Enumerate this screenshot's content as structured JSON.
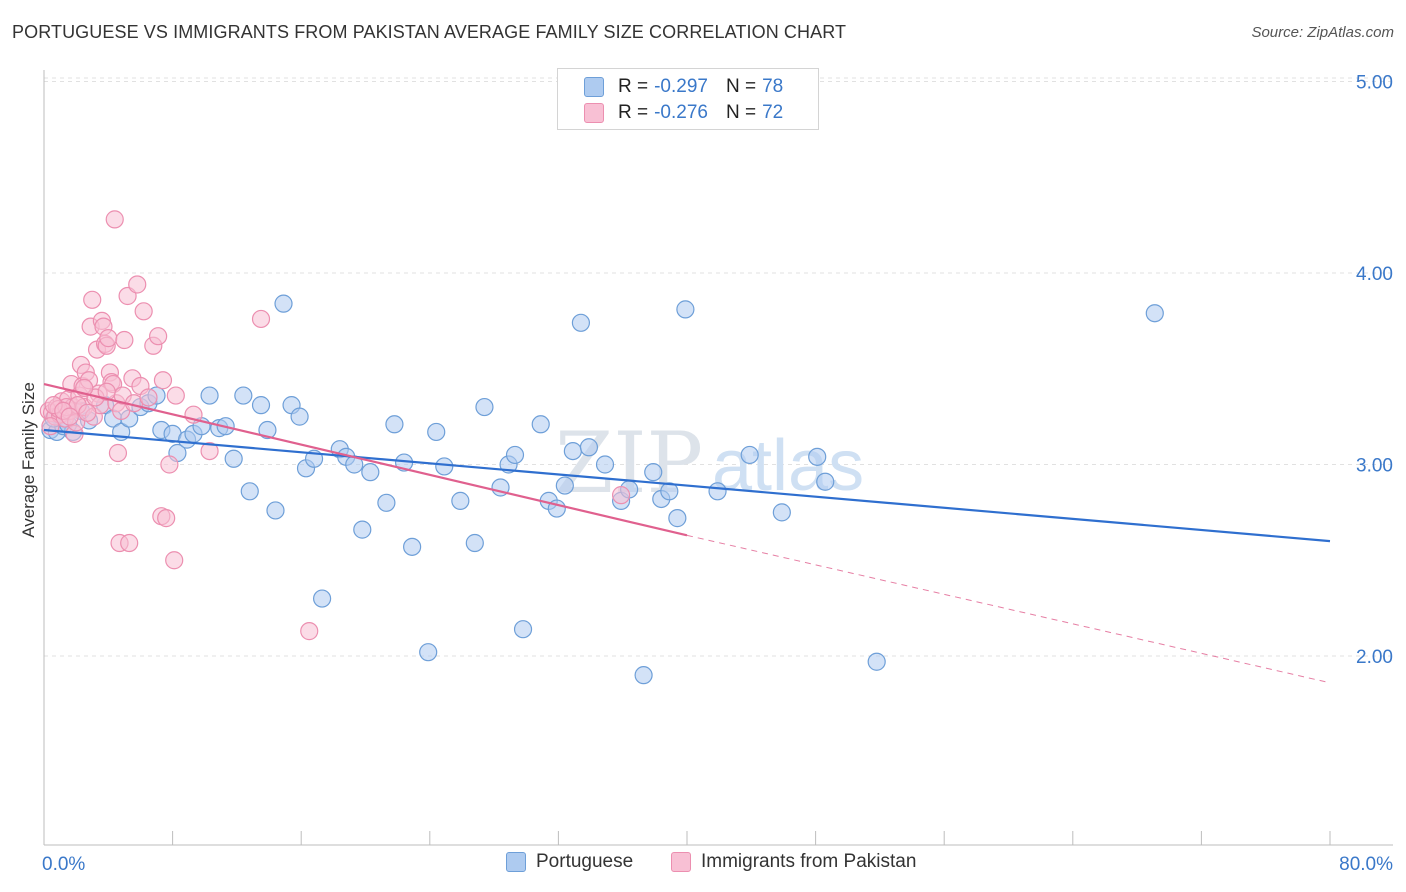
{
  "title": "PORTUGUESE VS IMMIGRANTS FROM PAKISTAN AVERAGE FAMILY SIZE CORRELATION CHART",
  "source": "Source: ZipAtlas.com",
  "watermark": {
    "zip": "ZIP",
    "atlas": "atlas"
  },
  "legend": {
    "r_label": "R =",
    "n_label": "N =",
    "series": [
      {
        "r": "-0.297",
        "n": "78",
        "color": "#3a78c9"
      },
      {
        "r": "-0.276",
        "n": "72",
        "color": "#3a78c9"
      }
    ]
  },
  "chart_data": {
    "type": "scatter",
    "title": "PORTUGUESE VS IMMIGRANTS FROM PAKISTAN AVERAGE FAMILY SIZE CORRELATION CHART",
    "xlabel": "",
    "ylabel": "Average Family Size",
    "xlim": [
      0,
      80
    ],
    "ylim": [
      1.0,
      5.1
    ],
    "x_tick_labels": [
      "0.0%",
      "80.0%"
    ],
    "y_ticks": [
      2.0,
      3.0,
      4.0,
      5.0
    ],
    "y_tick_labels": [
      "2.00",
      "3.00",
      "4.00",
      "5.00"
    ],
    "grid": true,
    "legend_position": "top-center",
    "series": [
      {
        "name": "Portuguese",
        "fill": "#aecbf0",
        "stroke": "#6e9fd8",
        "trend": {
          "x": [
            0,
            80
          ],
          "y": [
            3.18,
            2.6
          ],
          "color": "#2f6fcf",
          "dashed_from": null
        },
        "points": [
          [
            0.4,
            3.18
          ],
          [
            0.8,
            3.17
          ],
          [
            1.2,
            3.2
          ],
          [
            1.8,
            3.17
          ],
          [
            2.8,
            3.23
          ],
          [
            3.8,
            3.31
          ],
          [
            4.3,
            3.24
          ],
          [
            4.8,
            3.17
          ],
          [
            5.3,
            3.24
          ],
          [
            6.0,
            3.3
          ],
          [
            6.5,
            3.32
          ],
          [
            7.0,
            3.36
          ],
          [
            7.3,
            3.18
          ],
          [
            8.0,
            3.16
          ],
          [
            8.3,
            3.06
          ],
          [
            8.9,
            3.13
          ],
          [
            9.3,
            3.16
          ],
          [
            9.8,
            3.2
          ],
          [
            10.3,
            3.36
          ],
          [
            10.9,
            3.19
          ],
          [
            11.3,
            3.2
          ],
          [
            11.8,
            3.03
          ],
          [
            12.4,
            3.36
          ],
          [
            12.8,
            2.86
          ],
          [
            13.5,
            3.31
          ],
          [
            13.9,
            3.18
          ],
          [
            14.4,
            2.76
          ],
          [
            14.9,
            3.84
          ],
          [
            15.4,
            3.31
          ],
          [
            15.9,
            3.25
          ],
          [
            16.3,
            2.98
          ],
          [
            16.8,
            3.03
          ],
          [
            17.3,
            2.3
          ],
          [
            18.4,
            3.08
          ],
          [
            18.8,
            3.04
          ],
          [
            19.3,
            3.0
          ],
          [
            19.8,
            2.66
          ],
          [
            20.3,
            2.96
          ],
          [
            21.3,
            2.8
          ],
          [
            21.8,
            3.21
          ],
          [
            22.4,
            3.01
          ],
          [
            22.9,
            2.57
          ],
          [
            23.9,
            2.02
          ],
          [
            24.4,
            3.17
          ],
          [
            24.9,
            2.99
          ],
          [
            25.9,
            2.81
          ],
          [
            26.8,
            2.59
          ],
          [
            27.4,
            3.3
          ],
          [
            28.4,
            2.88
          ],
          [
            28.9,
            3.0
          ],
          [
            29.3,
            3.05
          ],
          [
            29.8,
            2.14
          ],
          [
            30.9,
            3.21
          ],
          [
            31.4,
            2.81
          ],
          [
            31.9,
            2.77
          ],
          [
            32.4,
            2.89
          ],
          [
            32.9,
            3.07
          ],
          [
            33.4,
            3.74
          ],
          [
            33.9,
            3.09
          ],
          [
            34.9,
            3.0
          ],
          [
            35.9,
            2.81
          ],
          [
            36.4,
            2.87
          ],
          [
            37.3,
            1.9
          ],
          [
            37.9,
            2.96
          ],
          [
            38.4,
            2.82
          ],
          [
            38.9,
            2.86
          ],
          [
            39.4,
            2.72
          ],
          [
            39.9,
            3.81
          ],
          [
            41.9,
            2.86
          ],
          [
            43.9,
            3.05
          ],
          [
            45.9,
            2.75
          ],
          [
            48.1,
            3.04
          ],
          [
            48.6,
            2.91
          ],
          [
            51.8,
            1.97
          ],
          [
            69.1,
            3.79
          ],
          [
            0.6,
            3.24
          ],
          [
            1.5,
            3.21
          ],
          [
            2.3,
            3.28
          ]
        ]
      },
      {
        "name": "Immigrants from Pakistan",
        "fill": "#f8c0d4",
        "stroke": "#ec8fb0",
        "trend": {
          "x": [
            0,
            40
          ],
          "y": [
            3.42,
            2.63
          ],
          "color": "#e0608e",
          "dashed_to": {
            "x": 80,
            "y": 1.86
          }
        },
        "points": [
          [
            0.3,
            3.28
          ],
          [
            0.5,
            3.27
          ],
          [
            0.7,
            3.25
          ],
          [
            0.8,
            3.3
          ],
          [
            1.0,
            3.26
          ],
          [
            1.1,
            3.33
          ],
          [
            1.3,
            3.24
          ],
          [
            1.5,
            3.34
          ],
          [
            1.6,
            3.28
          ],
          [
            1.7,
            3.42
          ],
          [
            1.8,
            3.3
          ],
          [
            1.9,
            3.16
          ],
          [
            2.0,
            3.22
          ],
          [
            2.2,
            3.36
          ],
          [
            2.3,
            3.52
          ],
          [
            2.4,
            3.41
          ],
          [
            2.5,
            3.3
          ],
          [
            2.6,
            3.48
          ],
          [
            2.8,
            3.44
          ],
          [
            2.9,
            3.72
          ],
          [
            3.0,
            3.86
          ],
          [
            3.1,
            3.25
          ],
          [
            3.3,
            3.6
          ],
          [
            3.4,
            3.37
          ],
          [
            3.5,
            3.31
          ],
          [
            3.6,
            3.75
          ],
          [
            3.7,
            3.72
          ],
          [
            3.8,
            3.63
          ],
          [
            3.9,
            3.62
          ],
          [
            4.0,
            3.66
          ],
          [
            4.1,
            3.48
          ],
          [
            4.2,
            3.43
          ],
          [
            4.3,
            3.42
          ],
          [
            4.4,
            4.28
          ],
          [
            4.5,
            3.32
          ],
          [
            4.6,
            3.06
          ],
          [
            4.7,
            2.59
          ],
          [
            4.8,
            3.28
          ],
          [
            4.9,
            3.36
          ],
          [
            5.0,
            3.65
          ],
          [
            5.2,
            3.88
          ],
          [
            5.3,
            2.59
          ],
          [
            5.5,
            3.45
          ],
          [
            5.6,
            3.32
          ],
          [
            5.8,
            3.94
          ],
          [
            6.0,
            3.41
          ],
          [
            6.2,
            3.8
          ],
          [
            6.5,
            3.35
          ],
          [
            6.8,
            3.62
          ],
          [
            7.1,
            3.67
          ],
          [
            7.3,
            2.73
          ],
          [
            7.4,
            3.44
          ],
          [
            7.6,
            2.72
          ],
          [
            7.8,
            3.0
          ],
          [
            8.1,
            2.5
          ],
          [
            8.2,
            3.36
          ],
          [
            9.3,
            3.26
          ],
          [
            10.3,
            3.07
          ],
          [
            13.5,
            3.76
          ],
          [
            16.5,
            2.13
          ],
          [
            35.9,
            2.84
          ],
          [
            0.4,
            3.2
          ],
          [
            0.9,
            3.29
          ],
          [
            1.4,
            3.3
          ],
          [
            2.1,
            3.31
          ],
          [
            2.7,
            3.27
          ],
          [
            3.2,
            3.35
          ],
          [
            0.6,
            3.31
          ],
          [
            1.2,
            3.28
          ],
          [
            1.6,
            3.25
          ],
          [
            2.5,
            3.4
          ],
          [
            3.9,
            3.38
          ]
        ]
      }
    ]
  }
}
